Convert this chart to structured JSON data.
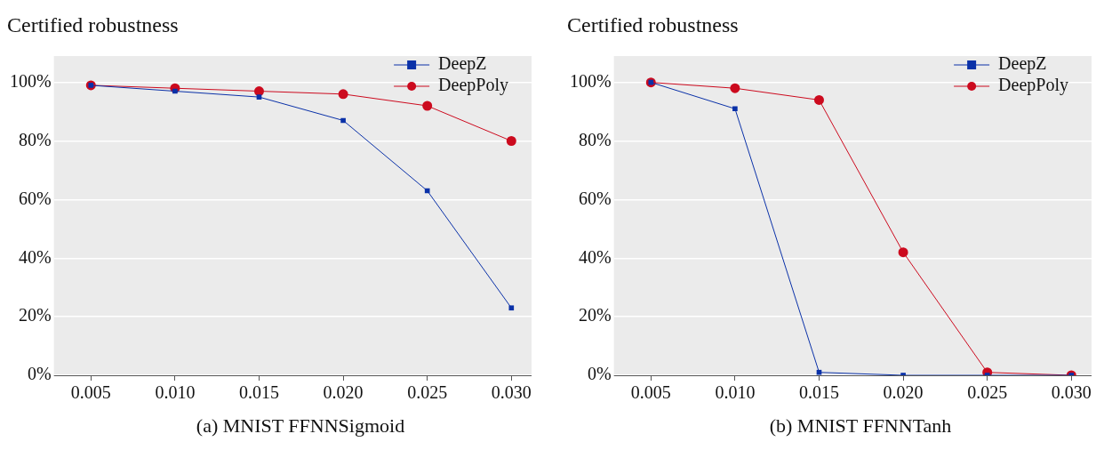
{
  "chart_data": [
    {
      "type": "line",
      "ylabel": "Certified robustness",
      "xlabel": "(a) MNIST FFNNSigmoid",
      "x": [
        0.005,
        0.01,
        0.015,
        0.02,
        0.025,
        0.03
      ],
      "series": [
        {
          "name": "DeepZ",
          "color": "#0a31a8",
          "marker": "square",
          "values": [
            99,
            97,
            95,
            87,
            63,
            23
          ]
        },
        {
          "name": "DeepPoly",
          "color": "#cc0a1e",
          "marker": "circle",
          "values": [
            99,
            98,
            97,
            96,
            92,
            80
          ]
        }
      ],
      "xlim": [
        0.0028,
        0.0312
      ],
      "ylim": [
        0,
        109
      ],
      "xticks": [
        {
          "value": 0.005,
          "label": "0.005"
        },
        {
          "value": 0.01,
          "label": "0.010"
        },
        {
          "value": 0.015,
          "label": "0.015"
        },
        {
          "value": 0.02,
          "label": "0.020"
        },
        {
          "value": 0.025,
          "label": "0.025"
        },
        {
          "value": 0.03,
          "label": "0.030"
        }
      ],
      "yticks": [
        {
          "value": 0,
          "label": "0%"
        },
        {
          "value": 20,
          "label": "20%"
        },
        {
          "value": 40,
          "label": "40%"
        },
        {
          "value": 60,
          "label": "60%"
        },
        {
          "value": 80,
          "label": "80%"
        },
        {
          "value": 100,
          "label": "100%"
        }
      ],
      "grid": "y",
      "legend": "top right",
      "line_style": "solid"
    },
    {
      "type": "line",
      "ylabel": "Certified robustness",
      "xlabel": "(b) MNIST FFNNTanh",
      "x": [
        0.005,
        0.01,
        0.015,
        0.02,
        0.025,
        0.03
      ],
      "series": [
        {
          "name": "DeepZ",
          "color": "#0a31a8",
          "marker": "square",
          "values": [
            100,
            91,
            1,
            0,
            0,
            0
          ]
        },
        {
          "name": "DeepPoly",
          "color": "#cc0a1e",
          "marker": "circle",
          "values": [
            100,
            98,
            94,
            42,
            1,
            0
          ]
        }
      ],
      "xlim": [
        0.0028,
        0.0312
      ],
      "ylim": [
        0,
        109
      ],
      "xticks": [
        {
          "value": 0.005,
          "label": "0.005"
        },
        {
          "value": 0.01,
          "label": "0.010"
        },
        {
          "value": 0.015,
          "label": "0.015"
        },
        {
          "value": 0.02,
          "label": "0.020"
        },
        {
          "value": 0.025,
          "label": "0.025"
        },
        {
          "value": 0.03,
          "label": "0.030"
        }
      ],
      "yticks": [
        {
          "value": 0,
          "label": "0%"
        },
        {
          "value": 20,
          "label": "20%"
        },
        {
          "value": 40,
          "label": "40%"
        },
        {
          "value": 60,
          "label": "60%"
        },
        {
          "value": 80,
          "label": "80%"
        },
        {
          "value": 100,
          "label": "100%"
        }
      ],
      "grid": "y",
      "legend": "top right",
      "line_style": "solid"
    }
  ]
}
